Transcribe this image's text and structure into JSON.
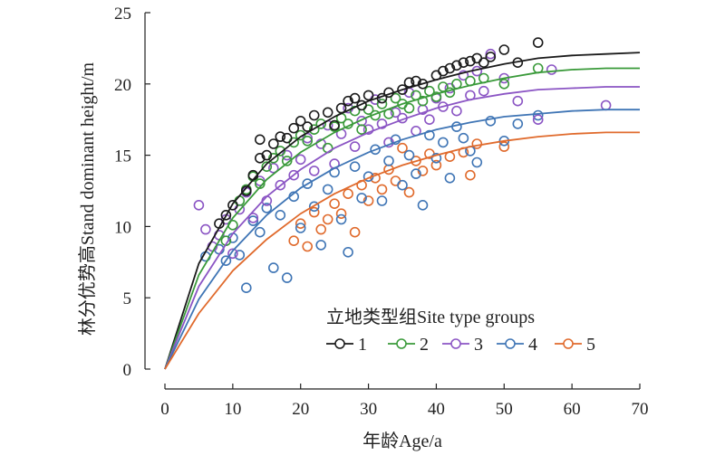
{
  "chart_data": {
    "type": "scatter",
    "title": "",
    "xlabel": "年龄Age/a",
    "ylabel": "林分优势高Stand dominant height/m",
    "xlim": [
      0,
      70
    ],
    "ylim": [
      0,
      25
    ],
    "x_ticks": [
      0,
      10,
      20,
      30,
      40,
      50,
      60,
      70
    ],
    "y_ticks": [
      0,
      5,
      10,
      15,
      20,
      25
    ],
    "grid": false,
    "legend": {
      "title": "立地类型组Site type groups",
      "placement": "bottom-right",
      "entries": [
        "1",
        "2",
        "3",
        "4",
        "5"
      ]
    },
    "series": [
      {
        "name": "1",
        "color": "#1a1a1a",
        "curve": [
          [
            0,
            0
          ],
          [
            5,
            7.4
          ],
          [
            10,
            11.6
          ],
          [
            15,
            14.4
          ],
          [
            20,
            16.3
          ],
          [
            25,
            17.7
          ],
          [
            30,
            18.8
          ],
          [
            35,
            19.6
          ],
          [
            40,
            20.3
          ],
          [
            45,
            20.9
          ],
          [
            50,
            21.4
          ],
          [
            55,
            21.8
          ],
          [
            60,
            22.0
          ],
          [
            65,
            22.1
          ],
          [
            70,
            22.2
          ]
        ],
        "points": [
          [
            8,
            10.2
          ],
          [
            9,
            10.8
          ],
          [
            10,
            11.5
          ],
          [
            12,
            12.5
          ],
          [
            13,
            13.6
          ],
          [
            14,
            14.8
          ],
          [
            14,
            16.1
          ],
          [
            15,
            15.0
          ],
          [
            16,
            15.8
          ],
          [
            17,
            16.3
          ],
          [
            18,
            16.2
          ],
          [
            19,
            16.9
          ],
          [
            20,
            17.4
          ],
          [
            21,
            17.0
          ],
          [
            22,
            17.8
          ],
          [
            24,
            18.0
          ],
          [
            25,
            17.1
          ],
          [
            26,
            18.3
          ],
          [
            27,
            18.8
          ],
          [
            28,
            19.0
          ],
          [
            29,
            18.5
          ],
          [
            30,
            19.2
          ],
          [
            32,
            19.0
          ],
          [
            33,
            19.4
          ],
          [
            35,
            19.6
          ],
          [
            36,
            20.1
          ],
          [
            37,
            20.2
          ],
          [
            38,
            20.0
          ],
          [
            40,
            20.6
          ],
          [
            41,
            20.9
          ],
          [
            42,
            21.1
          ],
          [
            43,
            21.3
          ],
          [
            44,
            21.5
          ],
          [
            45,
            21.6
          ],
          [
            46,
            21.8
          ],
          [
            47,
            21.5
          ],
          [
            48,
            21.9
          ],
          [
            50,
            22.4
          ],
          [
            52,
            21.5
          ],
          [
            55,
            22.9
          ]
        ]
      },
      {
        "name": "2",
        "color": "#3a9a3a",
        "curve": [
          [
            0,
            0
          ],
          [
            5,
            6.6
          ],
          [
            10,
            10.6
          ],
          [
            15,
            13.3
          ],
          [
            20,
            15.2
          ],
          [
            25,
            16.6
          ],
          [
            30,
            17.7
          ],
          [
            35,
            18.6
          ],
          [
            40,
            19.3
          ],
          [
            45,
            19.9
          ],
          [
            50,
            20.4
          ],
          [
            55,
            20.8
          ],
          [
            60,
            21.0
          ],
          [
            65,
            21.1
          ],
          [
            70,
            21.1
          ]
        ],
        "points": [
          [
            9,
            9.0
          ],
          [
            10,
            10.1
          ],
          [
            11,
            11.8
          ],
          [
            12,
            12.6
          ],
          [
            13,
            13.5
          ],
          [
            14,
            13.0
          ],
          [
            15,
            14.2
          ],
          [
            16,
            14.8
          ],
          [
            17,
            15.3
          ],
          [
            18,
            14.6
          ],
          [
            19,
            15.9
          ],
          [
            20,
            16.4
          ],
          [
            21,
            16.0
          ],
          [
            22,
            16.8
          ],
          [
            23,
            17.2
          ],
          [
            24,
            15.5
          ],
          [
            25,
            17.0
          ],
          [
            26,
            17.6
          ],
          [
            27,
            17.2
          ],
          [
            28,
            18.1
          ],
          [
            29,
            16.8
          ],
          [
            30,
            18.2
          ],
          [
            31,
            17.8
          ],
          [
            32,
            18.6
          ],
          [
            33,
            17.9
          ],
          [
            34,
            19.0
          ],
          [
            35,
            18.6
          ],
          [
            36,
            18.3
          ],
          [
            37,
            19.2
          ],
          [
            38,
            18.8
          ],
          [
            39,
            19.5
          ],
          [
            40,
            19.1
          ],
          [
            41,
            19.8
          ],
          [
            42,
            19.4
          ],
          [
            43,
            20.0
          ],
          [
            45,
            20.2
          ],
          [
            47,
            20.4
          ],
          [
            50,
            20.0
          ],
          [
            55,
            21.1
          ]
        ]
      },
      {
        "name": "3",
        "color": "#8b55c4",
        "curve": [
          [
            0,
            0
          ],
          [
            5,
            5.8
          ],
          [
            10,
            9.5
          ],
          [
            15,
            12.1
          ],
          [
            20,
            14.0
          ],
          [
            25,
            15.5
          ],
          [
            30,
            16.6
          ],
          [
            35,
            17.5
          ],
          [
            40,
            18.3
          ],
          [
            45,
            18.9
          ],
          [
            50,
            19.3
          ],
          [
            55,
            19.6
          ],
          [
            60,
            19.7
          ],
          [
            65,
            19.8
          ],
          [
            70,
            19.8
          ]
        ],
        "points": [
          [
            5,
            11.5
          ],
          [
            6,
            9.8
          ],
          [
            7,
            8.6
          ],
          [
            8,
            9.4
          ],
          [
            9,
            10.5
          ],
          [
            10,
            8.1
          ],
          [
            11,
            11.2
          ],
          [
            12,
            12.4
          ],
          [
            13,
            10.6
          ],
          [
            14,
            13.2
          ],
          [
            15,
            11.8
          ],
          [
            16,
            14.1
          ],
          [
            17,
            12.9
          ],
          [
            18,
            15.0
          ],
          [
            19,
            13.6
          ],
          [
            20,
            14.7
          ],
          [
            21,
            16.2
          ],
          [
            22,
            13.9
          ],
          [
            23,
            15.8
          ],
          [
            24,
            17.1
          ],
          [
            25,
            14.4
          ],
          [
            26,
            16.5
          ],
          [
            27,
            18.3
          ],
          [
            28,
            15.6
          ],
          [
            29,
            17.4
          ],
          [
            30,
            16.8
          ],
          [
            31,
            18.9
          ],
          [
            32,
            17.2
          ],
          [
            33,
            15.9
          ],
          [
            34,
            18.0
          ],
          [
            35,
            17.6
          ],
          [
            36,
            19.4
          ],
          [
            37,
            16.7
          ],
          [
            38,
            18.2
          ],
          [
            39,
            17.5
          ],
          [
            40,
            19.0
          ],
          [
            41,
            18.4
          ],
          [
            42,
            19.7
          ],
          [
            43,
            18.1
          ],
          [
            44,
            20.6
          ],
          [
            45,
            19.2
          ],
          [
            46,
            20.9
          ],
          [
            47,
            19.5
          ],
          [
            48,
            22.1
          ],
          [
            50,
            20.4
          ],
          [
            52,
            18.8
          ],
          [
            55,
            17.5
          ],
          [
            57,
            21.0
          ],
          [
            65,
            18.5
          ]
        ]
      },
      {
        "name": "4",
        "color": "#3f75b5",
        "curve": [
          [
            0,
            0
          ],
          [
            5,
            4.9
          ],
          [
            10,
            8.3
          ],
          [
            15,
            10.8
          ],
          [
            20,
            12.7
          ],
          [
            25,
            14.1
          ],
          [
            30,
            15.2
          ],
          [
            35,
            16.1
          ],
          [
            40,
            16.8
          ],
          [
            45,
            17.3
          ],
          [
            50,
            17.7
          ],
          [
            55,
            17.9
          ],
          [
            60,
            18.1
          ],
          [
            65,
            18.2
          ],
          [
            70,
            18.2
          ]
        ],
        "points": [
          [
            6,
            7.9
          ],
          [
            8,
            8.4
          ],
          [
            9,
            7.6
          ],
          [
            10,
            9.2
          ],
          [
            11,
            8.0
          ],
          [
            12,
            5.7
          ],
          [
            13,
            10.4
          ],
          [
            14,
            9.6
          ],
          [
            15,
            11.3
          ],
          [
            16,
            7.1
          ],
          [
            17,
            10.8
          ],
          [
            18,
            6.4
          ],
          [
            19,
            12.1
          ],
          [
            20,
            9.9
          ],
          [
            21,
            13.0
          ],
          [
            22,
            11.4
          ],
          [
            23,
            8.7
          ],
          [
            24,
            12.6
          ],
          [
            25,
            13.8
          ],
          [
            26,
            10.5
          ],
          [
            27,
            8.2
          ],
          [
            28,
            14.2
          ],
          [
            29,
            12.0
          ],
          [
            30,
            13.5
          ],
          [
            31,
            15.4
          ],
          [
            32,
            11.8
          ],
          [
            33,
            14.6
          ],
          [
            34,
            16.1
          ],
          [
            35,
            12.9
          ],
          [
            36,
            15.0
          ],
          [
            37,
            13.7
          ],
          [
            38,
            11.5
          ],
          [
            39,
            16.4
          ],
          [
            40,
            14.8
          ],
          [
            41,
            15.9
          ],
          [
            42,
            13.4
          ],
          [
            43,
            17.0
          ],
          [
            44,
            16.2
          ],
          [
            45,
            15.3
          ],
          [
            46,
            14.5
          ],
          [
            48,
            17.4
          ],
          [
            50,
            16.0
          ],
          [
            52,
            17.2
          ],
          [
            55,
            17.8
          ]
        ]
      },
      {
        "name": "5",
        "color": "#e06a2c",
        "curve": [
          [
            0,
            0
          ],
          [
            5,
            3.9
          ],
          [
            10,
            6.9
          ],
          [
            15,
            9.1
          ],
          [
            20,
            10.9
          ],
          [
            25,
            12.3
          ],
          [
            30,
            13.4
          ],
          [
            35,
            14.3
          ],
          [
            40,
            15.0
          ],
          [
            45,
            15.6
          ],
          [
            50,
            16.0
          ],
          [
            55,
            16.3
          ],
          [
            60,
            16.5
          ],
          [
            65,
            16.6
          ],
          [
            70,
            16.6
          ]
        ],
        "points": [
          [
            19,
            9.0
          ],
          [
            20,
            10.2
          ],
          [
            21,
            8.6
          ],
          [
            22,
            11.0
          ],
          [
            23,
            9.8
          ],
          [
            24,
            10.5
          ],
          [
            25,
            11.6
          ],
          [
            26,
            10.9
          ],
          [
            27,
            12.3
          ],
          [
            28,
            9.6
          ],
          [
            29,
            12.9
          ],
          [
            30,
            11.8
          ],
          [
            31,
            13.4
          ],
          [
            32,
            12.6
          ],
          [
            33,
            14.0
          ],
          [
            34,
            13.2
          ],
          [
            35,
            15.5
          ],
          [
            36,
            12.4
          ],
          [
            37,
            14.6
          ],
          [
            38,
            13.9
          ],
          [
            39,
            15.1
          ],
          [
            40,
            14.3
          ],
          [
            42,
            14.9
          ],
          [
            44,
            15.2
          ],
          [
            45,
            13.6
          ],
          [
            46,
            15.8
          ],
          [
            50,
            15.6
          ]
        ]
      }
    ]
  }
}
